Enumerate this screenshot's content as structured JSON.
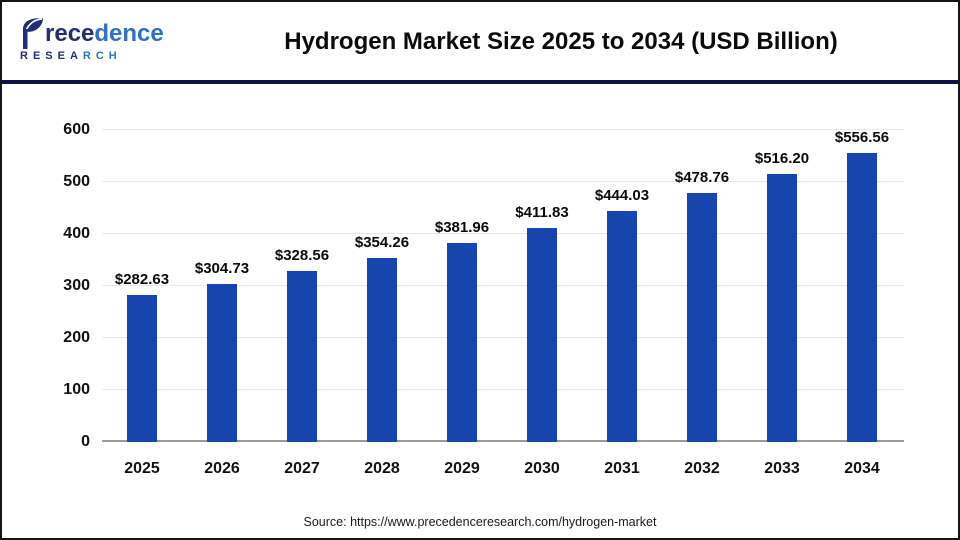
{
  "header": {
    "logo": {
      "brand_letter": "P",
      "brand_navy": "rece",
      "brand_blue": "dence",
      "research_navy": "RESEA",
      "research_blue": "RCH",
      "navy_color": "#232E74",
      "blue_color": "#2F6FC8"
    },
    "separator_color": "#0E1245"
  },
  "chart_data": {
    "type": "bar",
    "title": "Hydrogen Market Size 2025 to 2034 (USD Billion)",
    "categories": [
      "2025",
      "2026",
      "2027",
      "2028",
      "2029",
      "2030",
      "2031",
      "2032",
      "2033",
      "2034"
    ],
    "values": [
      282.63,
      304.73,
      328.56,
      354.26,
      381.96,
      411.83,
      444.03,
      478.76,
      516.2,
      556.56
    ],
    "value_labels": [
      "$282.63",
      "$304.73",
      "$328.56",
      "$354.26",
      "$381.96",
      "$411.83",
      "$444.03",
      "$478.76",
      "$516.20",
      "$556.56"
    ],
    "xlabel": "",
    "ylabel": "",
    "ylim": [
      0,
      600
    ],
    "yticks": [
      0,
      100,
      200,
      300,
      400,
      500,
      600
    ],
    "grid": true,
    "legend": false,
    "bar_color": "#1645AE",
    "gridline_color": "#e7e7e7",
    "axis_line_color": "#9b9b9b"
  },
  "footer": {
    "source_text": "Source: https://www.precedenceresearch.com/hydrogen-market"
  }
}
